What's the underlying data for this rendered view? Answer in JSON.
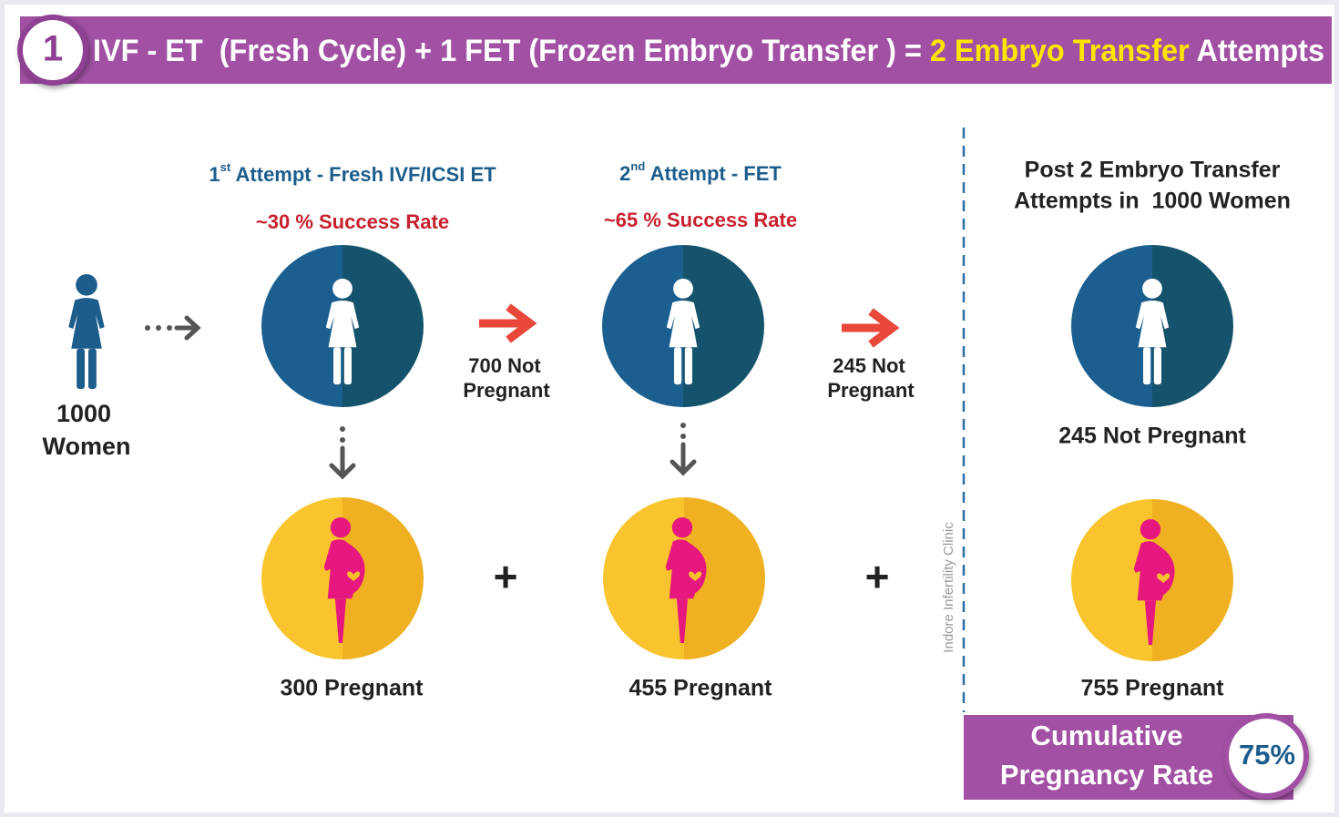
{
  "header": {
    "number": "1",
    "title_start": "IVF - ET  (Fresh Cycle) + 1 FET (Frozen Embryo Transfer ) = ",
    "title_highlight": "2 Embryo Transfer",
    "title_end": " Attempts"
  },
  "start": {
    "count": "1000",
    "label": "Women"
  },
  "attempts": [
    {
      "ordinal": "1",
      "suffix": "st",
      "heading": " Attempt - Fresh IVF/ICSI ET",
      "success_rate": "~30 % Success Rate",
      "not_pregnant": [
        "700 Not",
        "Pregnant"
      ],
      "pregnant": "300 Pregnant"
    },
    {
      "ordinal": "2",
      "suffix": "nd",
      "heading": " Attempt - FET",
      "success_rate": "~65 % Success Rate",
      "not_pregnant": [
        "245 Not",
        "Pregnant"
      ],
      "pregnant": "455 Pregnant"
    }
  ],
  "plus": [
    "+",
    "+"
  ],
  "summary": {
    "heading": [
      "Post 2 Embryo Transfer",
      "Attempts in  1000 Women"
    ],
    "not_pregnant": "245 Not Pregnant",
    "pregnant": "755 Pregnant"
  },
  "result": {
    "label": [
      "Cumulative",
      "Pregnancy Rate"
    ],
    "rate": "75%"
  },
  "watermark": "Indore Infertility Clinic"
}
